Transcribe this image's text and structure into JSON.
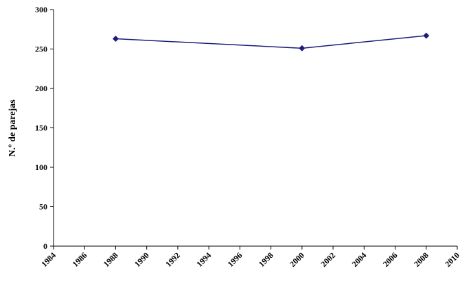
{
  "chart_data": {
    "type": "line",
    "title": "",
    "xlabel": "",
    "ylabel": "N.º de parejas",
    "xlim": [
      1984,
      2010
    ],
    "ylim": [
      0,
      300
    ],
    "x_ticks": [
      "1984",
      "1986",
      "1988",
      "1990",
      "1992",
      "1994",
      "1996",
      "1998",
      "2000",
      "2002",
      "2004",
      "2006",
      "2008",
      "2010"
    ],
    "y_ticks": [
      "0",
      "50",
      "100",
      "150",
      "200",
      "250",
      "300"
    ],
    "grid": false,
    "legend": "none",
    "series": [
      {
        "x": [
          1988,
          2000,
          2008
        ],
        "values": [
          263,
          251,
          267
        ],
        "color": "#1b1b7a"
      }
    ]
  }
}
